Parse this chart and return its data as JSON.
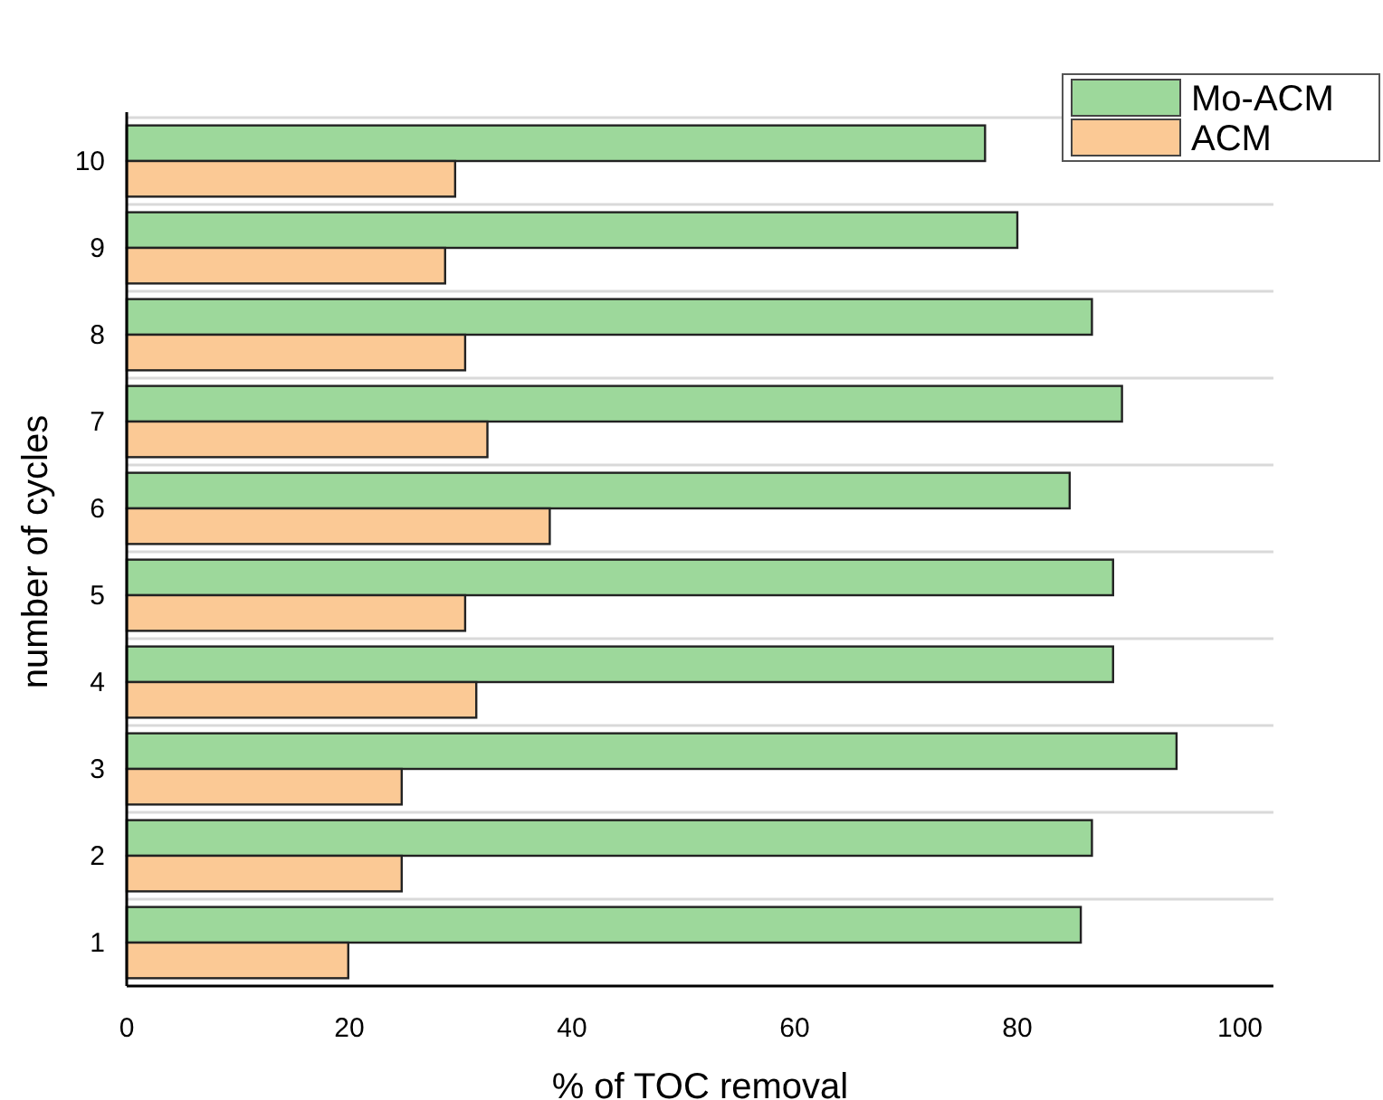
{
  "chart_data": {
    "type": "bar",
    "orientation": "horizontal",
    "xlabel": "% of TOC removal",
    "ylabel": "number of cycles",
    "categories": [
      "10",
      "9",
      "8",
      "7",
      "6",
      "5",
      "4",
      "3",
      "2",
      "1"
    ],
    "series": [
      {
        "name": "Mo-ACM",
        "color": "#9dd89b",
        "values": [
          77.1,
          80,
          86.7,
          89.4,
          84.7,
          88.6,
          88.6,
          94.3,
          86.7,
          85.7
        ]
      },
      {
        "name": "ACM",
        "color": "#fbc995",
        "values": [
          29.5,
          28.6,
          30.4,
          32.4,
          38,
          30.4,
          31.4,
          24.7,
          24.7,
          19.9
        ]
      }
    ],
    "xlim": [
      0,
      103
    ],
    "xticks": [
      0,
      20,
      40,
      60,
      80,
      100
    ],
    "grid": "y",
    "legend": "top right"
  }
}
